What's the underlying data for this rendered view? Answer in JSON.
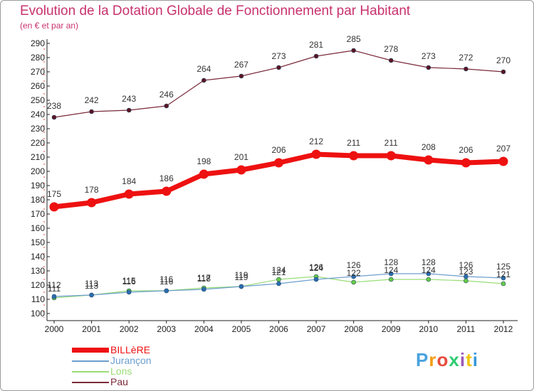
{
  "title": "Evolution de la Dotation Globale de Fonctionnement par Habitant",
  "subtitle": "(en € et par an)",
  "logo_text": "Proxiti",
  "logo_colors": [
    "#4aa3df",
    "#f39c12",
    "#e74c3c",
    "#2ecc71",
    "#9b59b6",
    "#f1c40f",
    "#3498db"
  ],
  "chart_data": {
    "type": "line",
    "title": "Evolution de la Dotation Globale de Fonctionnement par Habitant",
    "subtitle": "(en € et par an)",
    "xlabel": "",
    "ylabel": "",
    "x": [
      "2000",
      "2001",
      "2002",
      "2003",
      "2004",
      "2005",
      "2006",
      "2007",
      "2008",
      "2009",
      "2010",
      "2011",
      "2012"
    ],
    "ylim": [
      100,
      290
    ],
    "yticks": [
      100,
      110,
      120,
      130,
      140,
      150,
      160,
      170,
      180,
      190,
      200,
      210,
      220,
      230,
      240,
      250,
      260,
      270,
      280,
      290
    ],
    "grid": false,
    "series": [
      {
        "name": "BILLèRE",
        "color": "#ee1111",
        "marker_color": "#ee1111",
        "values": [
          175,
          178,
          184,
          186,
          198,
          201,
          206,
          212,
          211,
          211,
          208,
          206,
          207
        ],
        "labels": [
          "175",
          "178",
          "184",
          "186",
          "198",
          "201",
          "206",
          "212",
          "211",
          "211",
          "208",
          "206",
          "207"
        ]
      },
      {
        "name": "Jurançon",
        "color": "#6e9fcf",
        "marker_color": "#2a6db0",
        "values": [
          112,
          113,
          115,
          116,
          117,
          119,
          121,
          124,
          126,
          128,
          128,
          126,
          125
        ],
        "labels": [
          "112",
          "113",
          "115",
          "116",
          "117",
          "119",
          "121",
          "124",
          "126",
          "128",
          "128",
          "126",
          "125"
        ]
      },
      {
        "name": "Lons",
        "color": "#99dd77",
        "marker_color": "#66cc44",
        "values": [
          111,
          113,
          116,
          116,
          118,
          119,
          124,
          126,
          122,
          124,
          124,
          123,
          121
        ],
        "labels": [
          "111",
          "113",
          "116",
          "116",
          "118",
          "119",
          "124",
          "126",
          "122",
          "124",
          "124",
          "123",
          "121"
        ]
      },
      {
        "name": "Pau",
        "color": "#7a2a3a",
        "marker_color": "#5c1420",
        "values": [
          238,
          242,
          243,
          246,
          264,
          267,
          273,
          281,
          285,
          278,
          273,
          272,
          270
        ],
        "labels": [
          "238",
          "242",
          "243",
          "246",
          "264",
          "267",
          "273",
          "281",
          "285",
          "278",
          "273",
          "272",
          "270"
        ]
      }
    ],
    "legend": "bottom-left"
  }
}
